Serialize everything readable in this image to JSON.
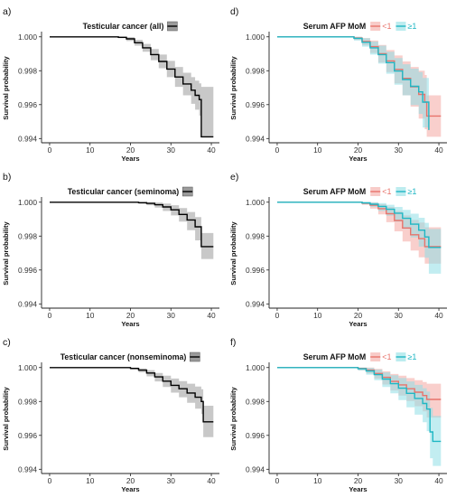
{
  "chart_data": [
    {
      "panel": "a)",
      "type": "line",
      "title": "Testicular cancer (all)",
      "xlabel": "Years",
      "ylabel": "Survival probability",
      "xlim": [
        -2,
        42
      ],
      "ylim": [
        0.99375,
        1.0002
      ],
      "xticks": [
        "0",
        "10",
        "20",
        "30",
        "40"
      ],
      "yticks": [
        "1.000",
        "0.998",
        "0.996",
        "0.994"
      ],
      "legend_position": "top",
      "series": [
        {
          "name": "",
          "color": "#000000",
          "band_color": "#9a9a9a",
          "x": [
            0,
            15,
            17,
            19,
            21,
            23,
            25,
            27,
            29,
            31,
            33,
            35,
            36,
            37,
            37.5,
            40.5
          ],
          "y": [
            1.0,
            1.0,
            0.99997,
            0.99988,
            0.99965,
            0.99935,
            0.99895,
            0.99855,
            0.9981,
            0.99763,
            0.99722,
            0.99685,
            0.99655,
            0.9963,
            0.9941,
            0.9941
          ],
          "lower": [
            1.0,
            1.0,
            0.99992,
            0.99975,
            0.99948,
            0.99912,
            0.99862,
            0.99815,
            0.99762,
            0.99705,
            0.99655,
            0.99605,
            0.9957,
            0.99535,
            0.9941,
            0.9941
          ],
          "upper": [
            1.0,
            1.0,
            1.0,
            0.99998,
            0.99982,
            0.99958,
            0.99928,
            0.99895,
            0.99858,
            0.99822,
            0.99788,
            0.99762,
            0.99742,
            0.99725,
            0.99705,
            0.99705
          ]
        }
      ]
    },
    {
      "panel": "b)",
      "type": "line",
      "title": "Testicular cancer (seminoma)",
      "xlabel": "Years",
      "ylabel": "Survival probability",
      "xlim": [
        -2,
        42
      ],
      "ylim": [
        0.99375,
        1.0002
      ],
      "xticks": [
        "0",
        "10",
        "20",
        "30",
        "40"
      ],
      "yticks": [
        "1.000",
        "0.998",
        "0.996",
        "0.994"
      ],
      "legend_position": "top",
      "series": [
        {
          "name": "",
          "color": "#000000",
          "band_color": "#9a9a9a",
          "x": [
            0,
            20,
            22,
            24,
            26,
            28,
            30,
            32,
            34,
            36,
            37.5,
            40.5
          ],
          "y": [
            1.0,
            1.0,
            0.99997,
            0.99993,
            0.99985,
            0.99972,
            0.99955,
            0.99928,
            0.99895,
            0.99855,
            0.99738,
            0.99738
          ],
          "lower": [
            1.0,
            1.0,
            0.9999,
            0.99982,
            0.99968,
            0.99948,
            0.99922,
            0.99885,
            0.99835,
            0.99775,
            0.99665,
            0.99665
          ],
          "upper": [
            1.0,
            1.0,
            1.0,
            1.0,
            0.99998,
            0.99992,
            0.99982,
            0.99965,
            0.99942,
            0.99912,
            0.99818,
            0.99818
          ]
        }
      ]
    },
    {
      "panel": "c)",
      "type": "line",
      "title": "Testicular cancer (nonseminoma)",
      "xlabel": "Years",
      "ylabel": "Survival probability",
      "xlim": [
        -2,
        42
      ],
      "ylim": [
        0.99375,
        1.0002
      ],
      "xticks": [
        "0",
        "10",
        "20",
        "30",
        "40"
      ],
      "yticks": [
        "1.000",
        "0.998",
        "0.996",
        "0.994"
      ],
      "legend_position": "top",
      "series": [
        {
          "name": "",
          "color": "#000000",
          "band_color": "#9a9a9a",
          "x": [
            0,
            18,
            20,
            22,
            24,
            26,
            28,
            30,
            32,
            34,
            36,
            37.5,
            38,
            40.5
          ],
          "y": [
            1.0,
            1.0,
            0.99995,
            0.99985,
            0.99968,
            0.99945,
            0.9992,
            0.99895,
            0.99875,
            0.9985,
            0.99825,
            0.998,
            0.9968,
            0.9968
          ],
          "lower": [
            1.0,
            1.0,
            0.99988,
            0.99972,
            0.99948,
            0.99918,
            0.99885,
            0.99852,
            0.99825,
            0.99792,
            0.99758,
            0.99725,
            0.9959,
            0.9959
          ],
          "upper": [
            1.0,
            1.0,
            1.0,
            0.99995,
            0.99985,
            0.99968,
            0.99952,
            0.99935,
            0.9992,
            0.99905,
            0.99888,
            0.99872,
            0.99775,
            0.99775
          ]
        }
      ]
    },
    {
      "panel": "d)",
      "type": "line",
      "title": "Serum AFP MoM",
      "xlabel": "Years",
      "ylabel": "Survival probability",
      "xlim": [
        -2,
        42
      ],
      "ylim": [
        0.99375,
        1.0002
      ],
      "xticks": [
        "0",
        "10",
        "20",
        "30",
        "40"
      ],
      "yticks": [
        "1.000",
        "0.998",
        "0.996",
        "0.994"
      ],
      "legend_position": "top",
      "series": [
        {
          "name": "<1",
          "color": "#e8736b",
          "band_color": "#f4a8a3",
          "x": [
            0,
            17,
            19,
            21,
            23,
            25,
            27,
            29,
            31,
            33,
            35,
            36.5,
            37,
            40.5
          ],
          "y": [
            1.0,
            1.0,
            0.99993,
            0.99972,
            0.99942,
            0.999,
            0.99858,
            0.99808,
            0.99755,
            0.99705,
            0.9966,
            0.99615,
            0.99533,
            0.99533
          ],
          "lower": [
            1.0,
            1.0,
            0.99982,
            0.9995,
            0.99905,
            0.99848,
            0.99792,
            0.99725,
            0.99655,
            0.99588,
            0.99518,
            0.99455,
            0.9941,
            0.9941
          ],
          "upper": [
            1.0,
            1.0,
            1.0,
            0.99993,
            0.99978,
            0.99952,
            0.99922,
            0.9989,
            0.99855,
            0.99822,
            0.998,
            0.99775,
            0.99655,
            0.99655
          ]
        },
        {
          "name": "≥1",
          "color": "#1fb7c4",
          "band_color": "#8fdfe5",
          "x": [
            0,
            17,
            19,
            21,
            23,
            25,
            27,
            29,
            31,
            33,
            35,
            36,
            37.5
          ],
          "y": [
            1.0,
            1.0,
            0.99991,
            0.99968,
            0.99935,
            0.99895,
            0.99848,
            0.99798,
            0.99748,
            0.99708,
            0.99675,
            0.99615,
            0.9945
          ],
          "lower": [
            1.0,
            1.0,
            0.99978,
            0.99942,
            0.99895,
            0.99842,
            0.99782,
            0.99718,
            0.99655,
            0.99598,
            0.99545,
            0.99465,
            0.9941
          ],
          "upper": [
            1.0,
            1.0,
            1.0,
            0.99992,
            0.99972,
            0.99948,
            0.99912,
            0.99875,
            0.99838,
            0.99812,
            0.99792,
            0.99758,
            0.99615
          ]
        }
      ]
    },
    {
      "panel": "e)",
      "type": "line",
      "title": "Serum AFP MoM",
      "xlabel": "Years",
      "ylabel": "Survival probability",
      "xlim": [
        -2,
        42
      ],
      "ylim": [
        0.99375,
        1.0002
      ],
      "xticks": [
        "0",
        "10",
        "20",
        "30",
        "40"
      ],
      "yticks": [
        "1.000",
        "0.998",
        "0.996",
        "0.994"
      ],
      "legend_position": "top",
      "series": [
        {
          "name": "<1",
          "color": "#e8736b",
          "band_color": "#f4a8a3",
          "x": [
            0,
            19,
            21,
            23,
            25,
            27,
            29,
            31,
            33,
            35,
            36.5,
            40.5
          ],
          "y": [
            1.0,
            1.0,
            0.99994,
            0.99982,
            0.99962,
            0.99932,
            0.99892,
            0.99848,
            0.99808,
            0.99785,
            0.99738,
            0.99738
          ],
          "lower": [
            1.0,
            1.0,
            0.99985,
            0.99962,
            0.99928,
            0.99882,
            0.99828,
            0.99768,
            0.99715,
            0.99675,
            0.99638,
            0.99638
          ],
          "upper": [
            1.0,
            1.0,
            1.0,
            0.99998,
            0.99988,
            0.99972,
            0.99948,
            0.99922,
            0.99895,
            0.9988,
            0.99852,
            0.99852
          ]
        },
        {
          "name": "≥1",
          "color": "#1fb7c4",
          "band_color": "#8fdfe5",
          "x": [
            0,
            19,
            21,
            23,
            25,
            27,
            29,
            31,
            33,
            35,
            36.5,
            37.5,
            40.5
          ],
          "y": [
            1.0,
            1.0,
            0.99996,
            0.99988,
            0.99975,
            0.99958,
            0.99935,
            0.99905,
            0.9987,
            0.99835,
            0.99795,
            0.99733,
            0.99733
          ],
          "lower": [
            1.0,
            1.0,
            0.99988,
            0.99972,
            0.99948,
            0.9992,
            0.99885,
            0.99842,
            0.99792,
            0.99738,
            0.99672,
            0.99578,
            0.99578
          ],
          "upper": [
            1.0,
            1.0,
            1.0,
            1.0,
            0.99995,
            0.99985,
            0.99972,
            0.99955,
            0.99932,
            0.99908,
            0.99878,
            0.99842,
            0.99842
          ]
        }
      ]
    },
    {
      "panel": "f)",
      "type": "line",
      "title": "Serum AFP MoM",
      "xlabel": "Years",
      "ylabel": "Survival probability",
      "xlim": [
        -2,
        42
      ],
      "ylim": [
        0.99375,
        1.0002
      ],
      "xticks": [
        "0",
        "10",
        "20",
        "30",
        "40"
      ],
      "yticks": [
        "1.000",
        "0.998",
        "0.996",
        "0.994"
      ],
      "legend_position": "top",
      "series": [
        {
          "name": "<1",
          "color": "#e8736b",
          "band_color": "#f4a8a3",
          "x": [
            0,
            18,
            20,
            22,
            24,
            26,
            28,
            30,
            32,
            34,
            36,
            37,
            40.5
          ],
          "y": [
            1.0,
            1.0,
            0.99995,
            0.99985,
            0.99965,
            0.99942,
            0.99918,
            0.99898,
            0.99875,
            0.99855,
            0.99835,
            0.99812,
            0.99812
          ],
          "lower": [
            1.0,
            1.0,
            0.99985,
            0.99965,
            0.99935,
            0.999,
            0.99865,
            0.99835,
            0.99802,
            0.99772,
            0.99742,
            0.99705,
            0.99705
          ],
          "upper": [
            1.0,
            1.0,
            1.0,
            1.0,
            0.99992,
            0.99978,
            0.99962,
            0.99952,
            0.99938,
            0.99925,
            0.99915,
            0.99905,
            0.99905
          ]
        },
        {
          "name": "≥1",
          "color": "#1fb7c4",
          "band_color": "#8fdfe5",
          "x": [
            0,
            18,
            20,
            22,
            24,
            26,
            28,
            30,
            32,
            34,
            36,
            37,
            37.8,
            38.5,
            40.5
          ],
          "y": [
            1.0,
            1.0,
            0.99993,
            0.9998,
            0.99958,
            0.99932,
            0.99905,
            0.99878,
            0.99848,
            0.99818,
            0.99788,
            0.99755,
            0.9962,
            0.99565,
            0.99565
          ],
          "lower": [
            1.0,
            1.0,
            0.99982,
            0.99958,
            0.99925,
            0.99885,
            0.99848,
            0.99808,
            0.99765,
            0.99722,
            0.99678,
            0.99625,
            0.99465,
            0.9942,
            0.9942
          ],
          "upper": [
            1.0,
            1.0,
            1.0,
            0.99998,
            0.99988,
            0.99972,
            0.99955,
            0.99938,
            0.99918,
            0.99898,
            0.99878,
            0.99858,
            0.99762,
            0.99715,
            0.99715
          ]
        }
      ]
    }
  ]
}
